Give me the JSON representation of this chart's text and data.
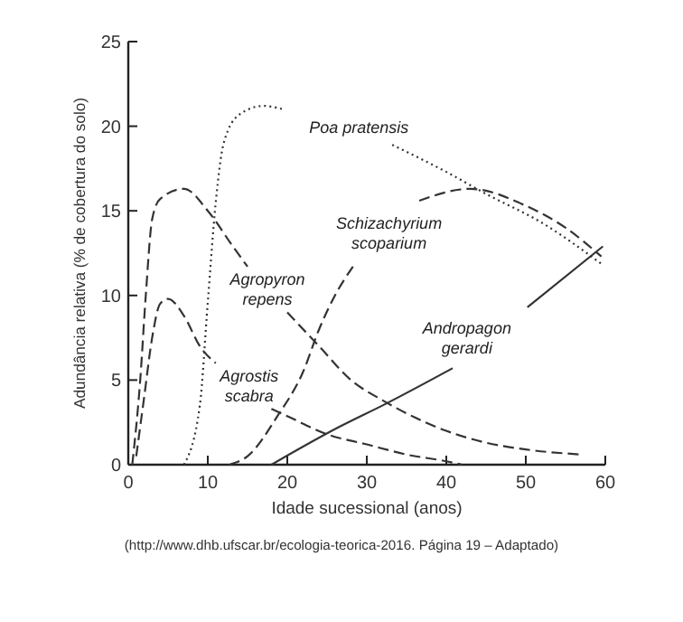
{
  "chart_data": {
    "type": "line",
    "xlabel": "Idade sucessional (anos)",
    "ylabel": "Adundância relativa (% de cobertura do solo)",
    "xlim": [
      0,
      60
    ],
    "ylim": [
      0,
      25
    ],
    "xticks": [
      0,
      10,
      20,
      30,
      40,
      50,
      60
    ],
    "yticks": [
      0,
      5,
      10,
      15,
      20,
      25
    ],
    "grid": false,
    "marker": "none",
    "series": [
      {
        "name": "Agropyron\nrepens",
        "color": "#333333",
        "line_style": "dashed",
        "x": [
          0.5,
          1.5,
          2.2,
          3,
          4,
          7,
          10,
          13,
          15,
          17.5,
          20,
          24,
          28,
          32,
          36,
          40,
          45,
          50,
          57
        ],
        "values": [
          0,
          5,
          10,
          14.5,
          15.7,
          16.3,
          15,
          13,
          11.7,
          null,
          9,
          7,
          5,
          3.8,
          2.8,
          2,
          1.3,
          0.9,
          0.6
        ]
      },
      {
        "name": "Agrostis\nscabra",
        "color": "#333333",
        "line_style": "dashed",
        "x": [
          1,
          2,
          3,
          4,
          5,
          7,
          9,
          11,
          15.2,
          18,
          20.3,
          25,
          30,
          35,
          40,
          42
        ],
        "values": [
          0.5,
          4,
          7.5,
          9.5,
          9.8,
          8.8,
          7,
          6,
          null,
          3.3,
          2.8,
          1.8,
          1.2,
          0.6,
          0.2,
          0
        ]
      },
      {
        "name": "Poa pratensis",
        "color": "#333333",
        "line_style": "dotted",
        "x": [
          7,
          9,
          10,
          11,
          12,
          14,
          17,
          19.5,
          29,
          33.2,
          40,
          45,
          52,
          59.7
        ],
        "values": [
          0,
          3.5,
          9.6,
          15.5,
          19,
          20.7,
          21.2,
          21,
          null,
          18.9,
          17.3,
          16,
          14.3,
          11.8
        ]
      },
      {
        "name": "Schizachyrium\nscoparium",
        "color": "#333333",
        "line_style": "dashed",
        "x": [
          12.7,
          15,
          18.8,
          22,
          24,
          26,
          28.4,
          32.8,
          36.6,
          43,
          50,
          55,
          59.5
        ],
        "values": [
          0,
          0.5,
          2.9,
          5.5,
          8,
          10,
          11.8,
          null,
          15.6,
          16.3,
          15.3,
          14,
          12.3
        ]
      },
      {
        "name": "Andropagon\ngerardi",
        "color": "#333333",
        "line_style": "solid",
        "x": [
          18,
          26.4,
          32.4,
          40.8,
          42.6,
          50.2,
          59.7
        ],
        "values": [
          0,
          2.2,
          3.6,
          5.7,
          null,
          9.3,
          12.9
        ]
      }
    ],
    "annotations": [
      "(http://www.dhb.ufscar.br/ecologia-teorica-2016. Página 19 – Adaptado)"
    ]
  }
}
